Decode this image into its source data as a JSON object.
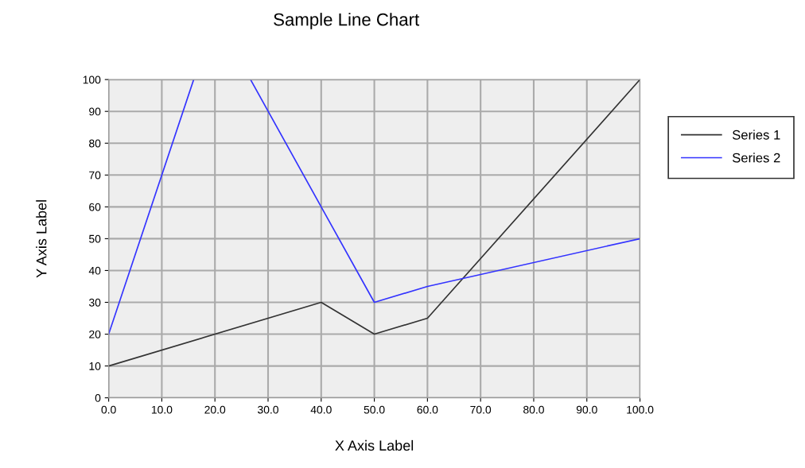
{
  "chart_data": {
    "type": "line",
    "title": "Sample Line Chart",
    "xlabel": "X Axis Label",
    "ylabel": "Y Axis Label",
    "series": [
      {
        "name": "Series 1",
        "color": "#333333",
        "x": [
          0,
          40,
          50,
          60,
          100
        ],
        "values": [
          10,
          30,
          20,
          25,
          100
        ]
      },
      {
        "name": "Series 2",
        "color": "#3333ff",
        "x": [
          0,
          16,
          21,
          26.7,
          40,
          50,
          60,
          100
        ],
        "values": [
          20,
          100,
          null,
          100,
          60,
          30,
          35,
          50
        ]
      }
    ],
    "xlim": [
      0,
      100
    ],
    "xticks": [
      {
        "value": 0,
        "label": "0.0"
      },
      {
        "value": 10,
        "label": "10.0"
      },
      {
        "value": 20,
        "label": "20.0"
      },
      {
        "value": 30,
        "label": "30.0"
      },
      {
        "value": 40,
        "label": "40.0"
      },
      {
        "value": 50,
        "label": "50.0"
      },
      {
        "value": 60,
        "label": "60.0"
      },
      {
        "value": 70,
        "label": "70.0"
      },
      {
        "value": 80,
        "label": "80.0"
      },
      {
        "value": 90,
        "label": "90.0"
      },
      {
        "value": 100,
        "label": "100.0"
      }
    ],
    "ylim": [
      0,
      100
    ],
    "yticks": [
      0,
      10,
      20,
      30,
      40,
      50,
      60,
      70,
      80,
      90,
      100
    ],
    "grid": true,
    "legend": "right",
    "marker": "none",
    "line_style": "solid"
  }
}
